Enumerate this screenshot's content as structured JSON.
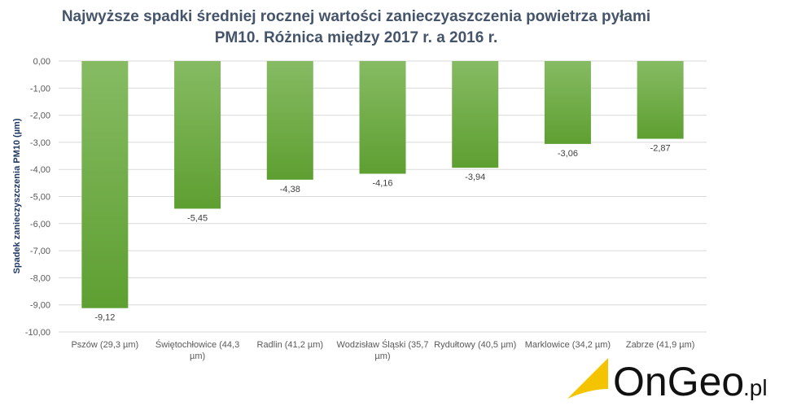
{
  "chart_data": {
    "type": "bar",
    "title": "Najwyższe spadki średniej rocznej wartości zanieczyaszczenia powietrza pyłami PM10. Różnica między 2017 r. a 2016 r.",
    "title_lines": [
      "Najwyższe spadki  średniej rocznej wartości zanieczyaszczenia powietrza pyłami",
      "PM10. Różnica między 2017 r. a 2016 r."
    ],
    "xlabel": "",
    "ylabel": "Spadek zanieczyszczenia PM10  (µm)",
    "ylim": [
      -10,
      0
    ],
    "yticks": [
      "0,00",
      "-1,00",
      "-2,00",
      "-3,00",
      "-4,00",
      "-5,00",
      "-6,00",
      "-7,00",
      "-8,00",
      "-9,00",
      "-10,00"
    ],
    "categories": [
      [
        "Pszów (29,3 µm)"
      ],
      [
        "Świętochłowice (44,3",
        "µm)"
      ],
      [
        "Radlin (41,2 µm)"
      ],
      [
        "Wodzisław Śląski (35,7",
        "µm)"
      ],
      [
        "Rydułtowy (40,5 µm)"
      ],
      [
        "Marklowice (34,2 µm)"
      ],
      [
        "Zabrze (41,9 µm)"
      ]
    ],
    "values": [
      -9.12,
      -5.45,
      -4.38,
      -4.16,
      -3.94,
      -3.06,
      -2.87
    ],
    "data_labels": [
      "-9,12",
      "-5,45",
      "-4,38",
      "-4,16",
      "-3,94",
      "-3,06",
      "-2,87"
    ],
    "grid": true,
    "legend": "none",
    "bar_color_top": "#86BB63",
    "bar_color_bottom": "#5E9F31"
  },
  "logo": {
    "text": "OnGeo",
    "suffix": ".pl",
    "accent": "#F5C400"
  }
}
